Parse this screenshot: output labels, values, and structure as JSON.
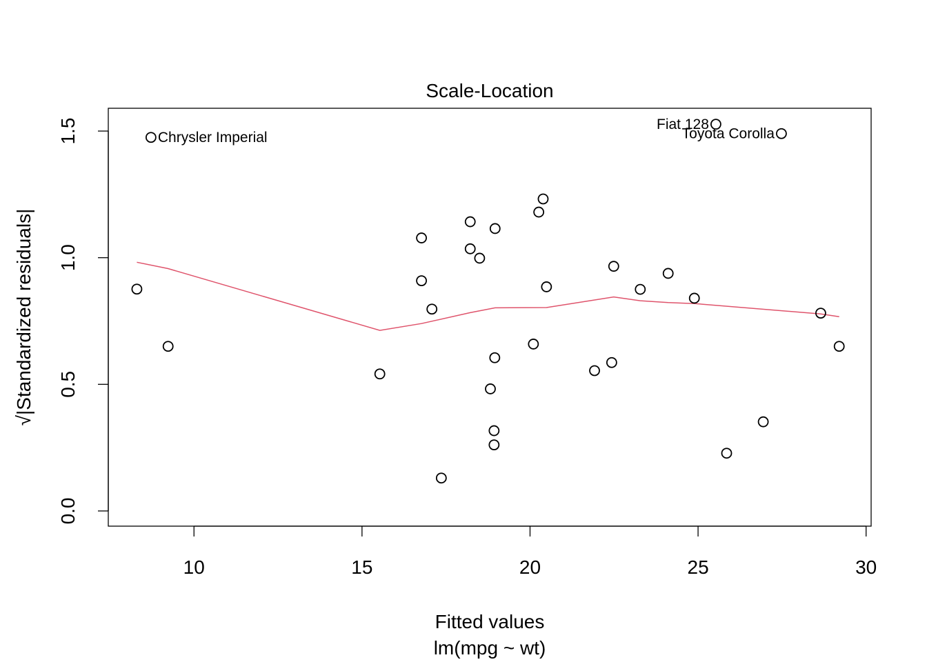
{
  "chart_data": {
    "type": "scatter",
    "title": "Scale-Location",
    "xlabel": "Fitted values",
    "xlabel_sub": "lm(mpg ~ wt)",
    "ylabel": "√|Standardized residuals|",
    "xlim": [
      7.45,
      30.15
    ],
    "ylim": [
      -0.06,
      1.59
    ],
    "xticks": [
      10,
      15,
      20,
      25,
      30
    ],
    "yticks": [
      0.0,
      0.5,
      1.0,
      1.5
    ],
    "xtick_labels": [
      "10",
      "15",
      "20",
      "25",
      "30"
    ],
    "ytick_labels": [
      "0.0",
      "0.5",
      "1.0",
      "1.5"
    ],
    "grid": false,
    "points": [
      {
        "x": 8.3,
        "y": 0.876
      },
      {
        "x": 8.72,
        "y": 1.475
      },
      {
        "x": 9.23,
        "y": 0.65
      },
      {
        "x": 15.53,
        "y": 0.541
      },
      {
        "x": 16.77,
        "y": 0.909
      },
      {
        "x": 16.77,
        "y": 1.078
      },
      {
        "x": 17.08,
        "y": 0.797
      },
      {
        "x": 17.36,
        "y": 0.13
      },
      {
        "x": 18.22,
        "y": 1.035
      },
      {
        "x": 18.22,
        "y": 1.142
      },
      {
        "x": 18.5,
        "y": 0.998
      },
      {
        "x": 18.82,
        "y": 0.482
      },
      {
        "x": 18.93,
        "y": 0.261
      },
      {
        "x": 18.93,
        "y": 0.317
      },
      {
        "x": 18.95,
        "y": 0.605
      },
      {
        "x": 18.96,
        "y": 1.115
      },
      {
        "x": 20.1,
        "y": 0.659
      },
      {
        "x": 20.26,
        "y": 1.18
      },
      {
        "x": 20.39,
        "y": 1.232
      },
      {
        "x": 20.49,
        "y": 0.885
      },
      {
        "x": 21.92,
        "y": 0.554
      },
      {
        "x": 22.43,
        "y": 0.586
      },
      {
        "x": 22.49,
        "y": 0.966
      },
      {
        "x": 23.28,
        "y": 0.875
      },
      {
        "x": 24.11,
        "y": 0.938
      },
      {
        "x": 24.89,
        "y": 0.84
      },
      {
        "x": 25.53,
        "y": 1.527
      },
      {
        "x": 25.85,
        "y": 0.228
      },
      {
        "x": 26.94,
        "y": 0.352
      },
      {
        "x": 27.48,
        "y": 1.49
      },
      {
        "x": 28.65,
        "y": 0.781
      },
      {
        "x": 29.2,
        "y": 0.65
      }
    ],
    "annotations": [
      {
        "label": "Chrysler Imperial",
        "x": 8.72,
        "y": 1.475,
        "side": "right"
      },
      {
        "label": "Fiat 128",
        "x": 25.53,
        "y": 1.527,
        "side": "left"
      },
      {
        "label": "Toyota Corolla",
        "x": 27.48,
        "y": 1.49,
        "side": "left"
      }
    ],
    "smoother": {
      "color": "#DF536B",
      "x": [
        8.3,
        9.23,
        15.53,
        16.77,
        18.22,
        18.96,
        20.49,
        22.49,
        23.28,
        24.11,
        24.89,
        28.65,
        29.2
      ],
      "y": [
        0.982,
        0.957,
        0.713,
        0.74,
        0.783,
        0.802,
        0.803,
        0.845,
        0.83,
        0.823,
        0.819,
        0.778,
        0.767
      ]
    }
  }
}
